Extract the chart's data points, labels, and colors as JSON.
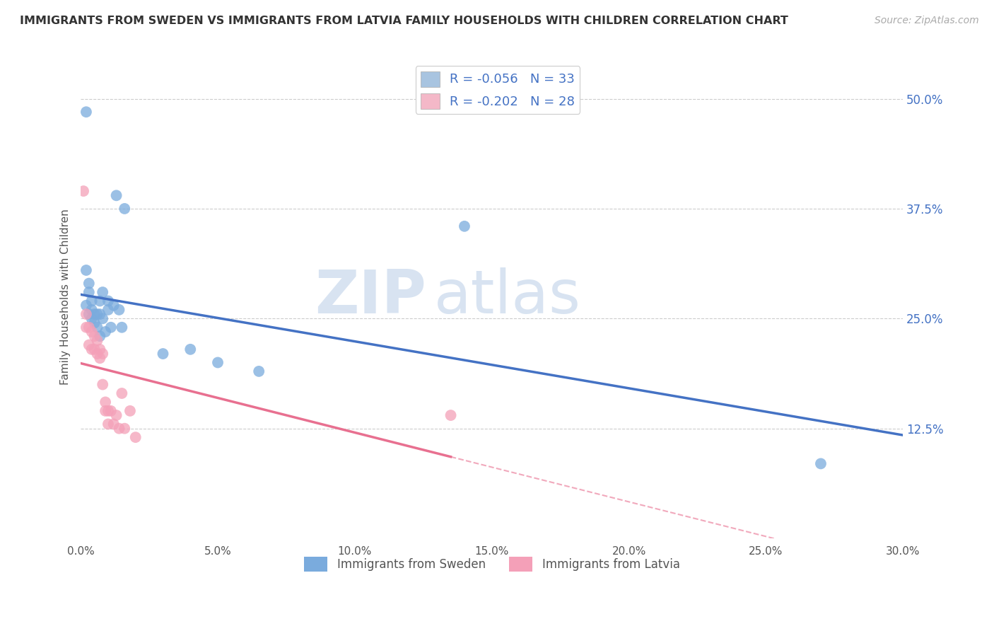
{
  "title": "IMMIGRANTS FROM SWEDEN VS IMMIGRANTS FROM LATVIA FAMILY HOUSEHOLDS WITH CHILDREN CORRELATION CHART",
  "source": "Source: ZipAtlas.com",
  "ylabel": "Family Households with Children",
  "xlim": [
    0.0,
    0.3
  ],
  "ylim": [
    0.0,
    0.55
  ],
  "xtick_labels": [
    "0.0%",
    "",
    "5.0%",
    "",
    "10.0%",
    "",
    "15.0%",
    "",
    "20.0%",
    "",
    "25.0%",
    "",
    "30.0%"
  ],
  "xtick_vals": [
    0.0,
    0.025,
    0.05,
    0.075,
    0.1,
    0.125,
    0.15,
    0.175,
    0.2,
    0.225,
    0.25,
    0.275,
    0.3
  ],
  "xtick_major_labels": [
    "0.0%",
    "5.0%",
    "10.0%",
    "15.0%",
    "20.0%",
    "25.0%",
    "30.0%"
  ],
  "xtick_major_vals": [
    0.0,
    0.05,
    0.1,
    0.15,
    0.2,
    0.25,
    0.3
  ],
  "ytick_labels_right": [
    "12.5%",
    "25.0%",
    "37.5%",
    "50.0%"
  ],
  "ytick_vals_right": [
    0.125,
    0.25,
    0.375,
    0.5
  ],
  "legend_labels": [
    "R = -0.056   N = 33",
    "R = -0.202   N = 28"
  ],
  "legend_colors": [
    "#a8c4e0",
    "#f4b8c8"
  ],
  "sweden_color": "#7aabdd",
  "latvia_color": "#f4a0b8",
  "sweden_line_color": "#4472c4",
  "latvia_line_color": "#e87090",
  "sweden_R": -0.056,
  "sweden_N": 33,
  "latvia_R": -0.202,
  "latvia_N": 28,
  "watermark_zip": "ZIP",
  "watermark_atlas": "atlas",
  "sweden_x": [
    0.002,
    0.002,
    0.002,
    0.003,
    0.003,
    0.003,
    0.004,
    0.004,
    0.004,
    0.005,
    0.005,
    0.006,
    0.006,
    0.007,
    0.007,
    0.007,
    0.008,
    0.008,
    0.009,
    0.01,
    0.01,
    0.011,
    0.012,
    0.013,
    0.014,
    0.015,
    0.016,
    0.03,
    0.04,
    0.05,
    0.065,
    0.14,
    0.27
  ],
  "sweden_y": [
    0.485,
    0.305,
    0.265,
    0.29,
    0.28,
    0.255,
    0.27,
    0.26,
    0.25,
    0.255,
    0.245,
    0.255,
    0.24,
    0.27,
    0.255,
    0.23,
    0.28,
    0.25,
    0.235,
    0.27,
    0.26,
    0.24,
    0.265,
    0.39,
    0.26,
    0.24,
    0.375,
    0.21,
    0.215,
    0.2,
    0.19,
    0.355,
    0.085
  ],
  "latvia_x": [
    0.001,
    0.002,
    0.002,
    0.003,
    0.003,
    0.004,
    0.004,
    0.005,
    0.005,
    0.006,
    0.006,
    0.007,
    0.007,
    0.008,
    0.008,
    0.009,
    0.009,
    0.01,
    0.01,
    0.011,
    0.012,
    0.013,
    0.014,
    0.015,
    0.016,
    0.018,
    0.02,
    0.135
  ],
  "latvia_y": [
    0.395,
    0.255,
    0.24,
    0.24,
    0.22,
    0.235,
    0.215,
    0.23,
    0.215,
    0.225,
    0.21,
    0.215,
    0.205,
    0.21,
    0.175,
    0.155,
    0.145,
    0.145,
    0.13,
    0.145,
    0.13,
    0.14,
    0.125,
    0.165,
    0.125,
    0.145,
    0.115,
    0.14
  ],
  "grid_color": "#cccccc",
  "background_color": "#ffffff",
  "title_color": "#333333",
  "right_yaxis_color": "#4472c4"
}
